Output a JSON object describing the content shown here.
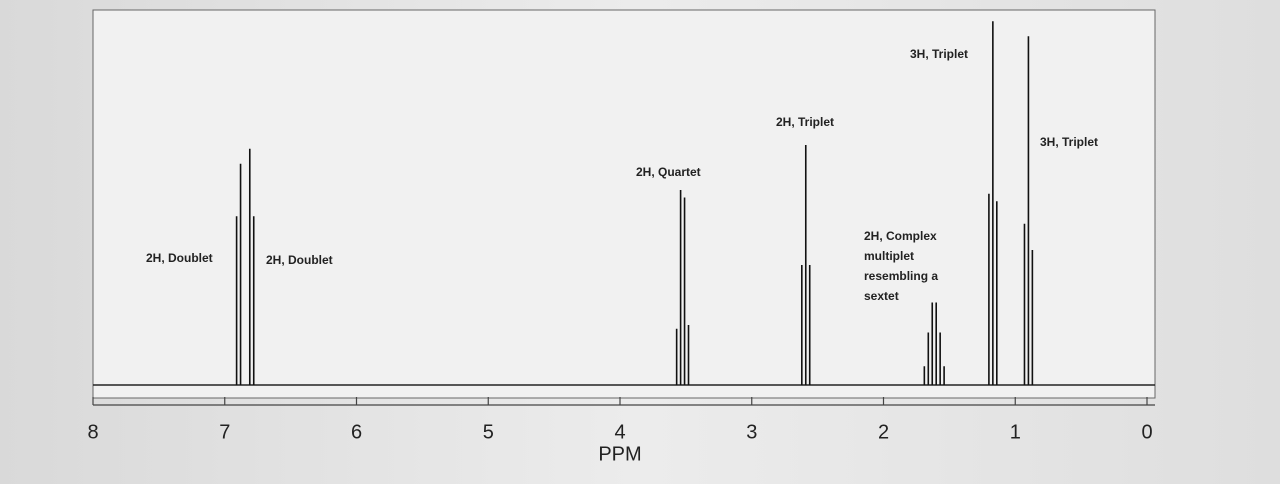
{
  "chart_data": {
    "type": "spectrum",
    "xlabel": "PPM",
    "xlim": [
      8,
      0
    ],
    "xticks": [
      8,
      7,
      6,
      5,
      4,
      3,
      2,
      1,
      0
    ],
    "ylim": [
      0,
      100
    ],
    "color": "#111111",
    "x": [
      6.91,
      6.88,
      6.81,
      6.78,
      3.57,
      3.54,
      3.51,
      3.48,
      2.62,
      2.59,
      2.56,
      1.69,
      1.66,
      1.63,
      1.6,
      1.57,
      1.54,
      1.2,
      1.17,
      1.14,
      0.93,
      0.9,
      0.87
    ],
    "values": [
      45,
      59,
      63,
      45,
      15,
      52,
      50,
      16,
      32,
      64,
      32,
      5,
      14,
      22,
      22,
      14,
      5,
      51,
      97,
      49,
      43,
      93,
      36
    ],
    "annotations": [
      "2H, Doublet",
      "2H, Doublet",
      "2H, Quartet",
      "2H, Triplet",
      "2H, Complex multiplet resembling a sextet",
      "3H, Triplet",
      "3H, Triplet"
    ]
  }
}
